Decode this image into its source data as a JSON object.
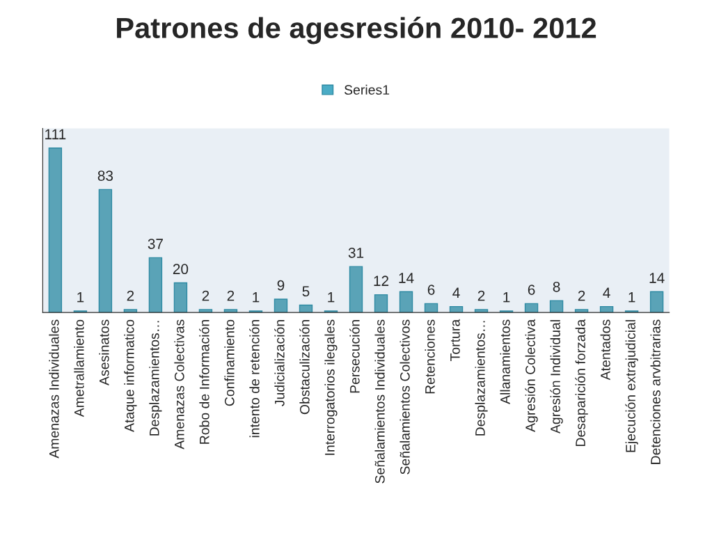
{
  "chart_data": {
    "type": "bar",
    "title": "Patrones de agesresión 2010- 2012",
    "categories": [
      "Amenazas Individuales",
      "Ametrallamiento",
      "Asesinatos",
      "Ataque informatico",
      "Desplazamientos…",
      "Amenazas Colectivas",
      "Robo de Información",
      "Confinamiento",
      "intento de retención",
      "Judicialización",
      "Obstaculización",
      "Interrogatorios ilegales",
      "Persecución",
      "Señalamientos Individuales",
      "Señalamientos Colectivos",
      "Retenciones",
      "Tortura",
      "Desplazamientos…",
      "Allanamientos",
      "Agresión Colectiva",
      "Agresión Individual",
      "Desaparición forzada",
      "Atentados",
      "Ejecución extrajudicial",
      "Detenciones arvbitrarias"
    ],
    "series": [
      {
        "name": "Series1",
        "color": "#4bacc6",
        "values": [
          111,
          1,
          83,
          2,
          37,
          20,
          2,
          2,
          1,
          9,
          5,
          1,
          31,
          12,
          14,
          6,
          4,
          2,
          1,
          6,
          8,
          2,
          4,
          1,
          14
        ]
      }
    ],
    "data_labels": true,
    "legend": "top",
    "grid": false
  }
}
